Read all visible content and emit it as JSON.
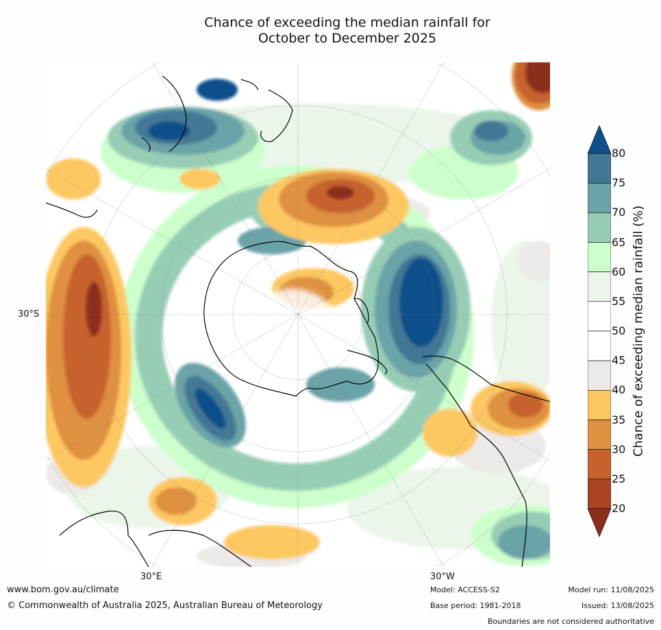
{
  "title": {
    "line1": "Chance of exceeding the median rainfall for",
    "line2": "October to December 2025"
  },
  "map": {
    "projection": "south-polar stereographic",
    "lat_labels": [
      "30°S"
    ],
    "lon_labels": [
      "30°E",
      "30°W"
    ]
  },
  "colorbar": {
    "label": "Chance of exceeding median rainfall (%)",
    "ticks": [
      "80",
      "75",
      "70",
      "65",
      "60",
      "55",
      "50",
      "45",
      "40",
      "35",
      "30",
      "25",
      "20"
    ],
    "colors": {
      "above80": "#0f4f8a",
      "75-80": "#437895",
      "70-75": "#6aa3a8",
      "65-70": "#98cdb5",
      "60-65": "#ccffcc",
      "55-60": "#ebf5ea",
      "50-55": "#ffffff",
      "45-50": "#ffffff",
      "40-45": "#ece9e6",
      "35-40": "#fdc862",
      "30-35": "#df9040",
      "25-30": "#c7622d",
      "20-25": "#a94423",
      "below20": "#8c2e1c"
    }
  },
  "footer": {
    "website": "www.bom.gov.au/climate",
    "copyright": "© Commonwealth of Australia 2025, Australian Bureau of Meteorology",
    "model": "Model: ACCESS-S2",
    "base_period": "Base period: 1981-2018",
    "model_run": "Model run: 11/08/2025",
    "issued": "Issued: 13/08/2025",
    "disclaimer": "Boundaries are not considered authoritative"
  }
}
